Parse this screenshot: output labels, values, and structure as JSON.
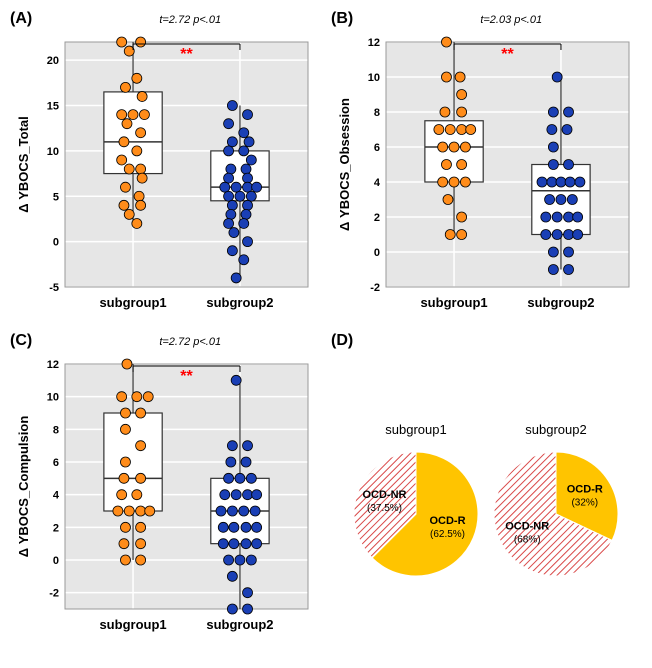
{
  "panels": {
    "A": {
      "label": "(A)",
      "stat": "t=2.72 p<.01",
      "stars": "**",
      "ylabel": "Δ YBOCS_Total",
      "ylim": [
        -5,
        22
      ],
      "yticks": [
        -5,
        0,
        5,
        10,
        15,
        20
      ],
      "categories": [
        "subgroup1",
        "subgroup2"
      ],
      "boxes": [
        {
          "q1": 7.5,
          "median": 11,
          "q3": 16.5,
          "wlo": 2,
          "whi": 22,
          "color": "#ff8c1a"
        },
        {
          "q1": 4.5,
          "median": 6,
          "q3": 10,
          "wlo": -4,
          "whi": 15,
          "color": "#1a3fb5"
        }
      ],
      "points": [
        {
          "g": 0,
          "y": 22,
          "j": -0.15
        },
        {
          "g": 0,
          "y": 22,
          "j": 0.1
        },
        {
          "g": 0,
          "y": 21,
          "j": -0.05
        },
        {
          "g": 0,
          "y": 18,
          "j": 0.05
        },
        {
          "g": 0,
          "y": 17,
          "j": -0.1
        },
        {
          "g": 0,
          "y": 16,
          "j": 0.12
        },
        {
          "g": 0,
          "y": 14,
          "j": -0.15
        },
        {
          "g": 0,
          "y": 14,
          "j": 0.0
        },
        {
          "g": 0,
          "y": 14,
          "j": 0.15
        },
        {
          "g": 0,
          "y": 13,
          "j": -0.08
        },
        {
          "g": 0,
          "y": 12,
          "j": 0.1
        },
        {
          "g": 0,
          "y": 11,
          "j": -0.12
        },
        {
          "g": 0,
          "y": 10,
          "j": 0.05
        },
        {
          "g": 0,
          "y": 9,
          "j": -0.15
        },
        {
          "g": 0,
          "y": 8,
          "j": 0.1
        },
        {
          "g": 0,
          "y": 8,
          "j": -0.05
        },
        {
          "g": 0,
          "y": 7,
          "j": 0.12
        },
        {
          "g": 0,
          "y": 6,
          "j": -0.1
        },
        {
          "g": 0,
          "y": 5,
          "j": 0.08
        },
        {
          "g": 0,
          "y": 4,
          "j": -0.12
        },
        {
          "g": 0,
          "y": 4,
          "j": 0.1
        },
        {
          "g": 0,
          "y": 3,
          "j": -0.05
        },
        {
          "g": 0,
          "y": 2,
          "j": 0.05
        },
        {
          "g": 1,
          "y": 15,
          "j": -0.1
        },
        {
          "g": 1,
          "y": 14,
          "j": 0.1
        },
        {
          "g": 1,
          "y": 13,
          "j": -0.15
        },
        {
          "g": 1,
          "y": 12,
          "j": 0.05
        },
        {
          "g": 1,
          "y": 11,
          "j": -0.1
        },
        {
          "g": 1,
          "y": 11,
          "j": 0.12
        },
        {
          "g": 1,
          "y": 10,
          "j": -0.15
        },
        {
          "g": 1,
          "y": 10,
          "j": 0.05
        },
        {
          "g": 1,
          "y": 9,
          "j": 0.15
        },
        {
          "g": 1,
          "y": 8,
          "j": -0.12
        },
        {
          "g": 1,
          "y": 8,
          "j": 0.08
        },
        {
          "g": 1,
          "y": 7,
          "j": -0.15
        },
        {
          "g": 1,
          "y": 7,
          "j": 0.1
        },
        {
          "g": 1,
          "y": 6,
          "j": -0.2
        },
        {
          "g": 1,
          "y": 6,
          "j": -0.05
        },
        {
          "g": 1,
          "y": 6,
          "j": 0.1
        },
        {
          "g": 1,
          "y": 6,
          "j": 0.22
        },
        {
          "g": 1,
          "y": 5,
          "j": -0.15
        },
        {
          "g": 1,
          "y": 5,
          "j": 0.0
        },
        {
          "g": 1,
          "y": 5,
          "j": 0.15
        },
        {
          "g": 1,
          "y": 4,
          "j": -0.1
        },
        {
          "g": 1,
          "y": 4,
          "j": 0.1
        },
        {
          "g": 1,
          "y": 3,
          "j": -0.12
        },
        {
          "g": 1,
          "y": 3,
          "j": 0.08
        },
        {
          "g": 1,
          "y": 2,
          "j": -0.15
        },
        {
          "g": 1,
          "y": 2,
          "j": 0.05
        },
        {
          "g": 1,
          "y": 1,
          "j": -0.08
        },
        {
          "g": 1,
          "y": 0,
          "j": 0.1
        },
        {
          "g": 1,
          "y": -1,
          "j": -0.1
        },
        {
          "g": 1,
          "y": -2,
          "j": 0.05
        },
        {
          "g": 1,
          "y": -4,
          "j": -0.05
        }
      ]
    },
    "B": {
      "label": "(B)",
      "stat": "t=2.03 p<.01",
      "stars": "**",
      "ylabel": "Δ YBOCS_Obsession",
      "ylim": [
        -2,
        12
      ],
      "yticks": [
        -2,
        0,
        2,
        4,
        6,
        8,
        10,
        12
      ],
      "categories": [
        "subgroup1",
        "subgroup2"
      ],
      "boxes": [
        {
          "q1": 4,
          "median": 6,
          "q3": 7.5,
          "wlo": 1,
          "whi": 12,
          "color": "#ff8c1a"
        },
        {
          "q1": 1,
          "median": 3.5,
          "q3": 5,
          "wlo": -1,
          "whi": 10,
          "color": "#1a3fb5"
        }
      ],
      "points": [
        {
          "g": 0,
          "y": 12,
          "j": -0.1
        },
        {
          "g": 0,
          "y": 10,
          "j": 0.08
        },
        {
          "g": 0,
          "y": 10,
          "j": -0.1
        },
        {
          "g": 0,
          "y": 9,
          "j": 0.1
        },
        {
          "g": 0,
          "y": 8,
          "j": -0.12
        },
        {
          "g": 0,
          "y": 8,
          "j": 0.1
        },
        {
          "g": 0,
          "y": 7,
          "j": -0.2
        },
        {
          "g": 0,
          "y": 7,
          "j": -0.05
        },
        {
          "g": 0,
          "y": 7,
          "j": 0.1
        },
        {
          "g": 0,
          "y": 7,
          "j": 0.22
        },
        {
          "g": 0,
          "y": 6,
          "j": -0.15
        },
        {
          "g": 0,
          "y": 6,
          "j": 0.0
        },
        {
          "g": 0,
          "y": 6,
          "j": 0.15
        },
        {
          "g": 0,
          "y": 5,
          "j": -0.1
        },
        {
          "g": 0,
          "y": 5,
          "j": 0.1
        },
        {
          "g": 0,
          "y": 4,
          "j": -0.15
        },
        {
          "g": 0,
          "y": 4,
          "j": 0.0
        },
        {
          "g": 0,
          "y": 4,
          "j": 0.15
        },
        {
          "g": 0,
          "y": 3,
          "j": -0.08
        },
        {
          "g": 0,
          "y": 2,
          "j": 0.1
        },
        {
          "g": 0,
          "y": 1,
          "j": -0.05
        },
        {
          "g": 0,
          "y": 1,
          "j": 0.1
        },
        {
          "g": 1,
          "y": 10,
          "j": -0.05
        },
        {
          "g": 1,
          "y": 8,
          "j": -0.1
        },
        {
          "g": 1,
          "y": 8,
          "j": 0.1
        },
        {
          "g": 1,
          "y": 7,
          "j": -0.12
        },
        {
          "g": 1,
          "y": 7,
          "j": 0.08
        },
        {
          "g": 1,
          "y": 6,
          "j": -0.1
        },
        {
          "g": 1,
          "y": 5,
          "j": 0.1
        },
        {
          "g": 1,
          "y": 5,
          "j": -0.1
        },
        {
          "g": 1,
          "y": 4,
          "j": -0.25
        },
        {
          "g": 1,
          "y": 4,
          "j": -0.12
        },
        {
          "g": 1,
          "y": 4,
          "j": 0.0
        },
        {
          "g": 1,
          "y": 4,
          "j": 0.12
        },
        {
          "g": 1,
          "y": 4,
          "j": 0.25
        },
        {
          "g": 1,
          "y": 3,
          "j": -0.15
        },
        {
          "g": 1,
          "y": 3,
          "j": 0.0
        },
        {
          "g": 1,
          "y": 3,
          "j": 0.15
        },
        {
          "g": 1,
          "y": 2,
          "j": -0.2
        },
        {
          "g": 1,
          "y": 2,
          "j": -0.05
        },
        {
          "g": 1,
          "y": 2,
          "j": 0.1
        },
        {
          "g": 1,
          "y": 2,
          "j": 0.22
        },
        {
          "g": 1,
          "y": 1,
          "j": -0.2
        },
        {
          "g": 1,
          "y": 1,
          "j": -0.05
        },
        {
          "g": 1,
          "y": 1,
          "j": 0.1
        },
        {
          "g": 1,
          "y": 1,
          "j": 0.22
        },
        {
          "g": 1,
          "y": 0,
          "j": -0.1
        },
        {
          "g": 1,
          "y": 0,
          "j": 0.1
        },
        {
          "g": 1,
          "y": -1,
          "j": -0.1
        },
        {
          "g": 1,
          "y": -1,
          "j": 0.1
        }
      ]
    },
    "C": {
      "label": "(C)",
      "stat": "t=2.72 p<.01",
      "stars": "**",
      "ylabel": "Δ YBOCS_Compulsion",
      "ylim": [
        -3,
        12
      ],
      "yticks": [
        -2,
        0,
        2,
        4,
        6,
        8,
        10,
        12
      ],
      "categories": [
        "subgroup1",
        "subgroup2"
      ],
      "boxes": [
        {
          "q1": 3,
          "median": 5,
          "q3": 9,
          "wlo": 0,
          "whi": 12,
          "color": "#ff8c1a"
        },
        {
          "q1": 1,
          "median": 3,
          "q3": 5,
          "wlo": -3,
          "whi": 11,
          "color": "#1a3fb5"
        }
      ],
      "points": [
        {
          "g": 0,
          "y": 12,
          "j": -0.08
        },
        {
          "g": 0,
          "y": 10,
          "j": -0.15
        },
        {
          "g": 0,
          "y": 10,
          "j": 0.05
        },
        {
          "g": 0,
          "y": 10,
          "j": 0.2
        },
        {
          "g": 0,
          "y": 9,
          "j": -0.1
        },
        {
          "g": 0,
          "y": 9,
          "j": 0.1
        },
        {
          "g": 0,
          "y": 8,
          "j": -0.1
        },
        {
          "g": 0,
          "y": 7,
          "j": 0.1
        },
        {
          "g": 0,
          "y": 6,
          "j": -0.1
        },
        {
          "g": 0,
          "y": 5,
          "j": -0.12
        },
        {
          "g": 0,
          "y": 5,
          "j": 0.1
        },
        {
          "g": 0,
          "y": 4,
          "j": -0.15
        },
        {
          "g": 0,
          "y": 4,
          "j": 0.05
        },
        {
          "g": 0,
          "y": 3,
          "j": -0.2
        },
        {
          "g": 0,
          "y": 3,
          "j": -0.05
        },
        {
          "g": 0,
          "y": 3,
          "j": 0.1
        },
        {
          "g": 0,
          "y": 3,
          "j": 0.22
        },
        {
          "g": 0,
          "y": 2,
          "j": -0.1
        },
        {
          "g": 0,
          "y": 2,
          "j": 0.1
        },
        {
          "g": 0,
          "y": 1,
          "j": -0.12
        },
        {
          "g": 0,
          "y": 1,
          "j": 0.1
        },
        {
          "g": 0,
          "y": 0,
          "j": -0.1
        },
        {
          "g": 0,
          "y": 0,
          "j": 0.1
        },
        {
          "g": 1,
          "y": 11,
          "j": -0.05
        },
        {
          "g": 1,
          "y": 7,
          "j": -0.1
        },
        {
          "g": 1,
          "y": 7,
          "j": 0.1
        },
        {
          "g": 1,
          "y": 6,
          "j": -0.12
        },
        {
          "g": 1,
          "y": 6,
          "j": 0.08
        },
        {
          "g": 1,
          "y": 5,
          "j": -0.15
        },
        {
          "g": 1,
          "y": 5,
          "j": 0.0
        },
        {
          "g": 1,
          "y": 5,
          "j": 0.15
        },
        {
          "g": 1,
          "y": 4,
          "j": -0.2
        },
        {
          "g": 1,
          "y": 4,
          "j": -0.05
        },
        {
          "g": 1,
          "y": 4,
          "j": 0.1
        },
        {
          "g": 1,
          "y": 4,
          "j": 0.22
        },
        {
          "g": 1,
          "y": 3,
          "j": -0.25
        },
        {
          "g": 1,
          "y": 3,
          "j": -0.1
        },
        {
          "g": 1,
          "y": 3,
          "j": 0.05
        },
        {
          "g": 1,
          "y": 3,
          "j": 0.2
        },
        {
          "g": 1,
          "y": 2,
          "j": -0.22
        },
        {
          "g": 1,
          "y": 2,
          "j": -0.08
        },
        {
          "g": 1,
          "y": 2,
          "j": 0.08
        },
        {
          "g": 1,
          "y": 2,
          "j": 0.22
        },
        {
          "g": 1,
          "y": 1,
          "j": -0.22
        },
        {
          "g": 1,
          "y": 1,
          "j": -0.08
        },
        {
          "g": 1,
          "y": 1,
          "j": 0.08
        },
        {
          "g": 1,
          "y": 1,
          "j": 0.22
        },
        {
          "g": 1,
          "y": 0,
          "j": -0.15
        },
        {
          "g": 1,
          "y": 0,
          "j": 0.0
        },
        {
          "g": 1,
          "y": 0,
          "j": 0.15
        },
        {
          "g": 1,
          "y": -1,
          "j": -0.1
        },
        {
          "g": 1,
          "y": -2,
          "j": 0.1
        },
        {
          "g": 1,
          "y": -3,
          "j": -0.1
        },
        {
          "g": 1,
          "y": -3,
          "j": 0.1
        }
      ]
    },
    "D": {
      "label": "(D)",
      "pies": [
        {
          "title": "subgroup1",
          "slices": [
            {
              "label": "OCD-R",
              "sub": "(62.5%)",
              "value": 62.5,
              "color": "#ffc400",
              "hatch": false
            },
            {
              "label": "OCD-NR",
              "sub": "(37.5%)",
              "value": 37.5,
              "color": "#d94848",
              "hatch": true
            }
          ]
        },
        {
          "title": "subgroup2",
          "slices": [
            {
              "label": "OCD-R",
              "sub": "(32%)",
              "value": 32,
              "color": "#ffc400",
              "hatch": false
            },
            {
              "label": "OCD-NR",
              "sub": "(68%)",
              "value": 68,
              "color": "#d94848",
              "hatch": true
            }
          ]
        }
      ]
    }
  },
  "style": {
    "plot_bg": "#e6e6e6",
    "grid_color": "#ffffff",
    "box_fill": "#ffffff",
    "box_stroke": "#333333",
    "point_stroke": "#000000",
    "star_color": "#ff0000",
    "point_radius": 5,
    "label_fontsize": 13,
    "tick_fontsize": 11
  }
}
